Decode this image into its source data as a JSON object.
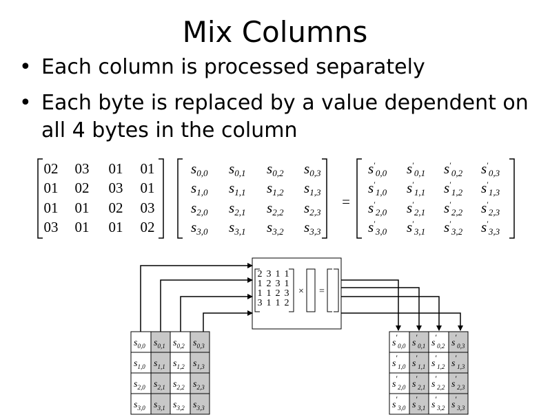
{
  "slide": {
    "title": "Mix Columns",
    "bullets": [
      "Each column is processed separately",
      "Each byte is replaced by a value dependent on all 4 bytes in the column"
    ]
  },
  "equation": {
    "matrix": [
      [
        "02",
        "03",
        "01",
        "01"
      ],
      [
        "01",
        "02",
        "03",
        "01"
      ],
      [
        "01",
        "01",
        "02",
        "03"
      ],
      [
        "03",
        "01",
        "01",
        "02"
      ]
    ],
    "state_symbol": "s",
    "output_symbol": "s′",
    "equals": "="
  },
  "diagram": {
    "small_matrix": [
      [
        "2",
        "3",
        "1",
        "1"
      ],
      [
        "1",
        "2",
        "3",
        "1"
      ],
      [
        "1",
        "1",
        "2",
        "3"
      ],
      [
        "3",
        "1",
        "1",
        "2"
      ]
    ],
    "times": "×",
    "equals": "=",
    "shaded_color": "#c8c8c8"
  }
}
